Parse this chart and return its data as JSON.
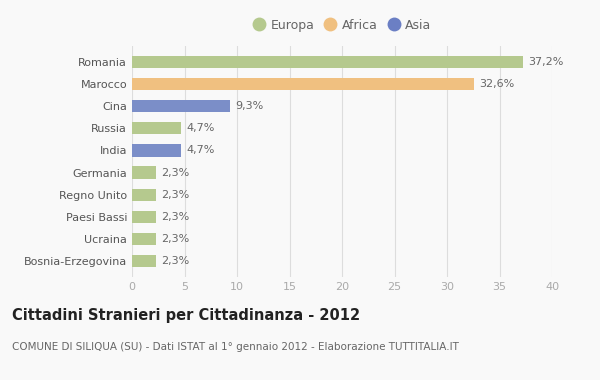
{
  "categories": [
    "Bosnia-Erzegovina",
    "Ucraina",
    "Paesi Bassi",
    "Regno Unito",
    "Germania",
    "India",
    "Russia",
    "Cina",
    "Marocco",
    "Romania"
  ],
  "values": [
    2.3,
    2.3,
    2.3,
    2.3,
    2.3,
    4.7,
    4.7,
    9.3,
    32.6,
    37.2
  ],
  "labels": [
    "2,3%",
    "2,3%",
    "2,3%",
    "2,3%",
    "2,3%",
    "4,7%",
    "4,7%",
    "9,3%",
    "32,6%",
    "37,2%"
  ],
  "colors": [
    "#b5c98e",
    "#b5c98e",
    "#b5c98e",
    "#b5c98e",
    "#b5c98e",
    "#7b8ec8",
    "#b5c98e",
    "#7b8ec8",
    "#f0c080",
    "#b5c98e"
  ],
  "legend": [
    {
      "label": "Europa",
      "color": "#b5c98e"
    },
    {
      "label": "Africa",
      "color": "#f0c080"
    },
    {
      "label": "Asia",
      "color": "#6b7fc4"
    }
  ],
  "xlim": [
    0,
    40
  ],
  "xticks": [
    0,
    5,
    10,
    15,
    20,
    25,
    30,
    35,
    40
  ],
  "title": "Cittadini Stranieri per Cittadinanza - 2012",
  "subtitle": "COMUNE DI SILIQUA (SU) - Dati ISTAT al 1° gennaio 2012 - Elaborazione TUTTITALIA.IT",
  "bg_color": "#f9f9f9",
  "bar_height": 0.55,
  "label_fontsize": 8,
  "tick_fontsize": 8,
  "title_fontsize": 10.5,
  "subtitle_fontsize": 7.5
}
